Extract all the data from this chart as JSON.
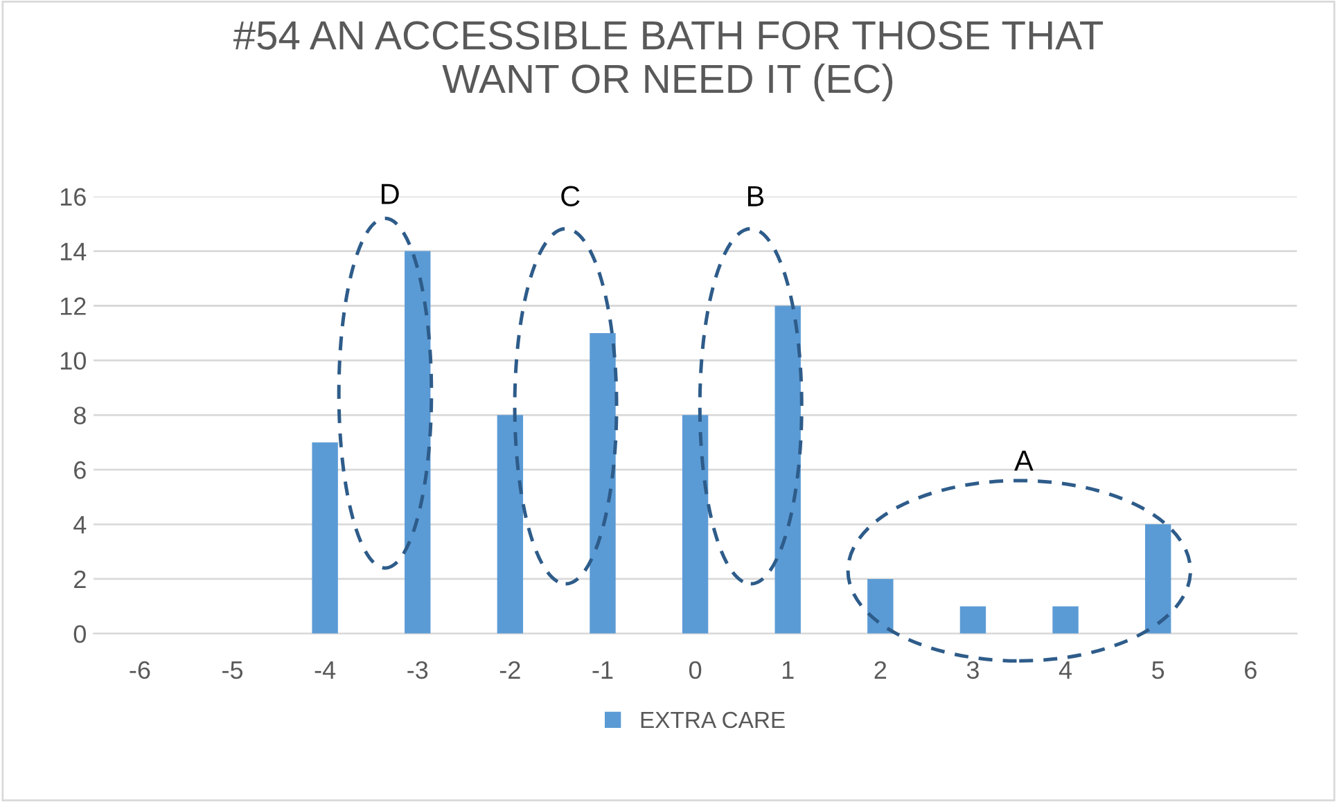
{
  "chart_data": {
    "type": "bar",
    "title": "#54 AN ACCESSIBLE BATH FOR THOSE THAT\nWANT OR NEED IT (EC)",
    "categories": [
      "-6",
      "-5",
      "-4",
      "-3",
      "-2",
      "-1",
      "0",
      "1",
      "2",
      "3",
      "4",
      "5",
      "6"
    ],
    "series": [
      {
        "name": "EXTRA CARE",
        "color": "#5b9bd5",
        "values": [
          0,
          0,
          7,
          14,
          8,
          11,
          8,
          12,
          2,
          1,
          1,
          4,
          0
        ]
      }
    ],
    "ylim": [
      0,
      16
    ],
    "yticks": [
      0,
      2,
      4,
      6,
      8,
      10,
      12,
      14,
      16
    ],
    "grid": "y",
    "legend": "bottom",
    "annotations": [
      "D",
      "C",
      "B",
      "A"
    ]
  }
}
